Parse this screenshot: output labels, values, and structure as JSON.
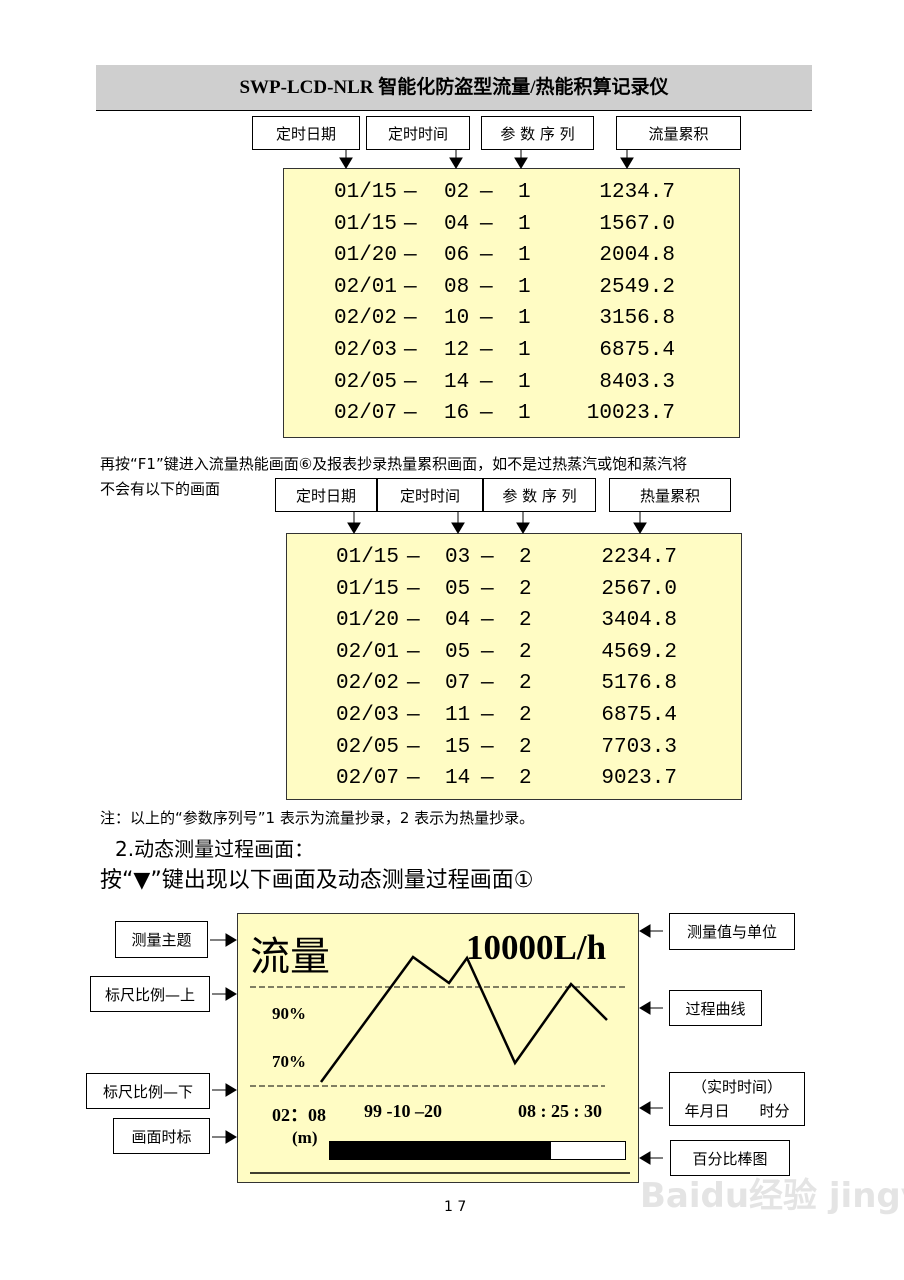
{
  "header": {
    "title": "SWP-LCD-NLR 智能化防盗型流量/热能积算记录仪"
  },
  "table1": {
    "headers": [
      "定时日期",
      "定时时间",
      "参 数 序 列",
      "流量累积"
    ],
    "rows": [
      [
        "01/15",
        "02",
        "1",
        "1234.7"
      ],
      [
        "01/15",
        "04",
        "1",
        "1567.0"
      ],
      [
        "01/20",
        "06",
        "1",
        "2004.8"
      ],
      [
        "02/01",
        "08",
        "1",
        "2549.2"
      ],
      [
        "02/02",
        "10",
        "1",
        "3156.8"
      ],
      [
        "02/03",
        "12",
        "1",
        "6875.4"
      ],
      [
        "02/05",
        "14",
        "1",
        "8403.3"
      ],
      [
        "02/07",
        "16",
        "1",
        "10023.7"
      ]
    ]
  },
  "paragraph": {
    "line1": "再按“F1”键进入流量热能画面⑥及报表抄录热量累积画面，如不是过热蒸汽或饱和蒸汽将",
    "line2": "不会有以下的画面"
  },
  "table2": {
    "headers": [
      "定时日期",
      "定时时间",
      "参 数 序 列",
      "热量累积"
    ],
    "rows": [
      [
        "01/15",
        "03",
        "2",
        "2234.7"
      ],
      [
        "01/15",
        "05",
        "2",
        "2567.0"
      ],
      [
        "01/20",
        "04",
        "2",
        "3404.8"
      ],
      [
        "02/01",
        "05",
        "2",
        "4569.2"
      ],
      [
        "02/02",
        "07",
        "2",
        "5176.8"
      ],
      [
        "02/03",
        "11",
        "2",
        "6875.4"
      ],
      [
        "02/05",
        "15",
        "2",
        "7703.3"
      ],
      [
        "02/07",
        "14",
        "2",
        "9023.7"
      ]
    ]
  },
  "dash": "—",
  "note": "注：以上的“参数序列号”1 表示为流量抄录，2 表示为热量抄录。",
  "section": {
    "title": "2.动态测量过程画面：",
    "instruction": "按“▼”键出现以下画面及动态测量过程画面①"
  },
  "lcd": {
    "subject": "流量",
    "value": "10000L/h",
    "scale_upper": "90%",
    "scale_lower": "70%",
    "time_mark": "02：08",
    "date": "99 -10 –20",
    "time": "08 : 25 : 30",
    "unit": "(m)",
    "bar_percent": 75
  },
  "labels_left": [
    "测量主题",
    "标尺比例—上",
    "标尺比例—下",
    "画面时标"
  ],
  "labels_right": {
    "value_unit": "测量值与单位",
    "curve": "过程曲线",
    "realtime1": "（实时时间）",
    "realtime2": "年月日　　时分",
    "bar": "百分比棒图"
  },
  "page_number": "1 7",
  "watermark": "Baidu经验 jingyan.baidu.com"
}
